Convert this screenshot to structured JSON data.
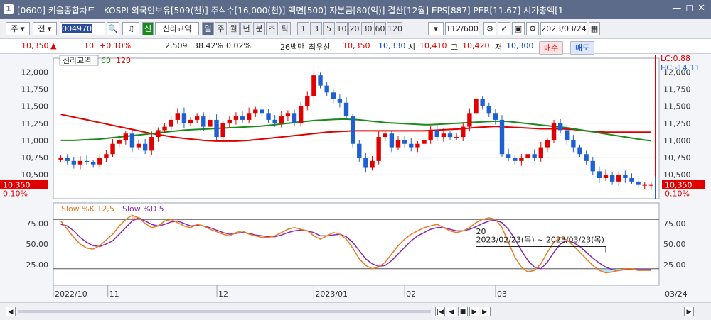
{
  "window": {
    "number": "1",
    "title": "[0600] 키움종합차트 - KOSPI 외국인보유[509(천)] 주식수[16,000(천)] 액면[500] 자본금[80(억)] 결산[12월] EPS[887] PER[11.67] 시가총액[1"
  },
  "toolbar": {
    "period_unit": "주",
    "prev_label": "전",
    "stock_code": "004970",
    "stock_tag": "신",
    "stock_name": "신라교역",
    "periods": [
      "일",
      "주",
      "월",
      "년",
      "분",
      "초",
      "틱"
    ],
    "active_period": "일",
    "minutes": [
      "1",
      "3",
      "5",
      "10",
      "20",
      "30",
      "60",
      "120"
    ],
    "count": "112/600",
    "date": "2023/03/24"
  },
  "quote": {
    "price": "10,350",
    "change": "10",
    "change_pct": "+0.10%",
    "volume": "2,509",
    "volume_ratio": "38.42%",
    "turnover": "0.02%",
    "min_trade_label": "26백만",
    "priority_label": "최우선",
    "best_ask": "10,350",
    "best_bid": "10,330",
    "open_label": "시",
    "open": "10,410",
    "high_label": "고",
    "high": "10,420",
    "low_label": "저",
    "low": "10,300",
    "buy_label": "매수",
    "sell_label": "매도"
  },
  "colors": {
    "up": "#e10000",
    "down": "#1e5fd1",
    "ma60": "#1a8a1a",
    "ma120": "#e10000",
    "k": "#f07a1a",
    "d": "#8a2ab0"
  },
  "chart_data": [
    {
      "type": "candlestick",
      "title": "신라교역",
      "legend": [
        "신라교역",
        "60",
        "120"
      ],
      "ylim": [
        10150,
        12200
      ],
      "yticks": [
        10500,
        10750,
        11000,
        11250,
        11500,
        11750,
        12000
      ],
      "ytick_labels": [
        "10,500",
        "10,750",
        "11,000",
        "11,250",
        "11,500",
        "11,750",
        "12,000"
      ],
      "right_labels": {
        "lc": "LC:0.88",
        "hc": "HC:-14.11",
        "last": "10,350",
        "last_pct": "0.10%"
      },
      "left_labels": {
        "last": "10,350",
        "last_pct": "0.10%"
      },
      "xlabels": [
        "2022/10",
        "11",
        "12",
        "2023/01",
        "02",
        "03"
      ],
      "right_date_label": "03/24",
      "close": [
        10750,
        10700,
        10650,
        10700,
        10680,
        10650,
        10750,
        10800,
        10950,
        11000,
        11100,
        10900,
        10950,
        10850,
        11050,
        11150,
        11200,
        11300,
        11400,
        11250,
        11300,
        11350,
        11200,
        11300,
        11050,
        11250,
        11300,
        11350,
        11300,
        11400,
        11450,
        11400,
        11300,
        11250,
        11350,
        11400,
        11250,
        11500,
        11650,
        11950,
        11800,
        11700,
        11600,
        11550,
        11350,
        10950,
        10750,
        10600,
        10700,
        11050,
        11100,
        10900,
        11000,
        10950,
        10900,
        10950,
        11000,
        11150,
        11050,
        11100,
        11050,
        11050,
        11200,
        11400,
        11600,
        11500,
        11400,
        11300,
        10800,
        10750,
        10700,
        10750,
        10800,
        10750,
        10900,
        11000,
        11250,
        11150,
        11000,
        10900,
        10800,
        10700,
        10550,
        10450,
        10500,
        10400,
        10500,
        10450,
        10400,
        10350,
        10350,
        10350
      ],
      "ma60": [
        11000,
        11000,
        11000,
        11005,
        11010,
        11015,
        11020,
        11030,
        11040,
        11050,
        11060,
        11070,
        11080,
        11090,
        11100,
        11110,
        11120,
        11130,
        11140,
        11150,
        11155,
        11160,
        11165,
        11170,
        11175,
        11180,
        11185,
        11190,
        11195,
        11200,
        11205,
        11210,
        11220,
        11230,
        11240,
        11250,
        11260,
        11270,
        11280,
        11290,
        11295,
        11300,
        11305,
        11310,
        11310,
        11305,
        11300,
        11290,
        11280,
        11270,
        11260,
        11255,
        11250,
        11245,
        11240,
        11235,
        11230,
        11230,
        11235,
        11240,
        11245,
        11250,
        11255,
        11260,
        11265,
        11270,
        11275,
        11280,
        11280,
        11275,
        11265,
        11255,
        11245,
        11235,
        11225,
        11215,
        11205,
        11195,
        11185,
        11170,
        11155,
        11140,
        11125,
        11110,
        11095,
        11080,
        11065,
        11050,
        11035,
        11020,
        11005,
        10995
      ],
      "ma120": [
        11380,
        11360,
        11340,
        11320,
        11300,
        11280,
        11260,
        11240,
        11220,
        11200,
        11180,
        11160,
        11140,
        11120,
        11100,
        11085,
        11070,
        11055,
        11040,
        11030,
        11020,
        11010,
        11000,
        10995,
        10990,
        10990,
        10990,
        10990,
        10995,
        11000,
        11010,
        11020,
        11030,
        11040,
        11050,
        11060,
        11070,
        11080,
        11090,
        11100,
        11110,
        11120,
        11125,
        11130,
        11135,
        11140,
        11140,
        11140,
        11140,
        11140,
        11140,
        11140,
        11140,
        11140,
        11140,
        11140,
        11140,
        11145,
        11150,
        11155,
        11160,
        11165,
        11170,
        11180,
        11190,
        11195,
        11200,
        11205,
        11200,
        11195,
        11190,
        11185,
        11180,
        11175,
        11170,
        11170,
        11170,
        11170,
        11165,
        11160,
        11150,
        11140,
        11130,
        11125,
        11120,
        11120,
        11120,
        11120,
        11120,
        11120,
        11120,
        11120
      ]
    },
    {
      "type": "line",
      "title": "Slow %K 12,5  Slow %D 5",
      "series": [
        {
          "name": "Slow %K 12,5"
        },
        {
          "name": "Slow %D 5"
        }
      ],
      "ylim": [
        0,
        100
      ],
      "yticks": [
        25,
        50,
        75
      ],
      "ytick_labels": [
        "25.00",
        "50.00",
        "75.00"
      ],
      "levels": [
        80,
        20
      ],
      "k": [
        78,
        68,
        58,
        50,
        45,
        44,
        48,
        55,
        62,
        72,
        80,
        85,
        82,
        75,
        70,
        72,
        78,
        80,
        76,
        72,
        70,
        74,
        72,
        68,
        65,
        62,
        60,
        64,
        66,
        62,
        60,
        58,
        58,
        60,
        64,
        68,
        70,
        68,
        66,
        60,
        56,
        60,
        64,
        62,
        56,
        45,
        32,
        24,
        20,
        22,
        28,
        38,
        48,
        56,
        62,
        66,
        70,
        72,
        74,
        70,
        66,
        64,
        66,
        70,
        76,
        80,
        82,
        80,
        70,
        52,
        34,
        22,
        16,
        18,
        26,
        40,
        52,
        58,
        55,
        48,
        40,
        32,
        24,
        18,
        15,
        16,
        18,
        20,
        20,
        18,
        18,
        18
      ],
      "d": [
        74,
        72,
        66,
        58,
        52,
        48,
        47,
        50,
        54,
        62,
        70,
        78,
        82,
        78,
        74,
        72,
        74,
        77,
        78,
        75,
        72,
        73,
        72,
        70,
        67,
        64,
        62,
        63,
        64,
        63,
        61,
        60,
        59,
        59,
        61,
        64,
        66,
        67,
        66,
        64,
        60,
        60,
        61,
        62,
        59,
        52,
        42,
        32,
        26,
        23,
        24,
        30,
        38,
        46,
        54,
        60,
        64,
        68,
        70,
        70,
        68,
        66,
        66,
        68,
        71,
        75,
        78,
        79,
        76,
        68,
        56,
        42,
        30,
        22,
        20,
        28,
        40,
        50,
        54,
        52,
        47,
        40,
        33,
        27,
        22,
        19,
        18,
        19,
        19,
        19,
        19,
        19
      ],
      "annotation": {
        "label": "20",
        "range": "2023/02/23(목) ~ 2023/03/23(목)"
      }
    }
  ],
  "statusbar": {
    "label": ""
  }
}
